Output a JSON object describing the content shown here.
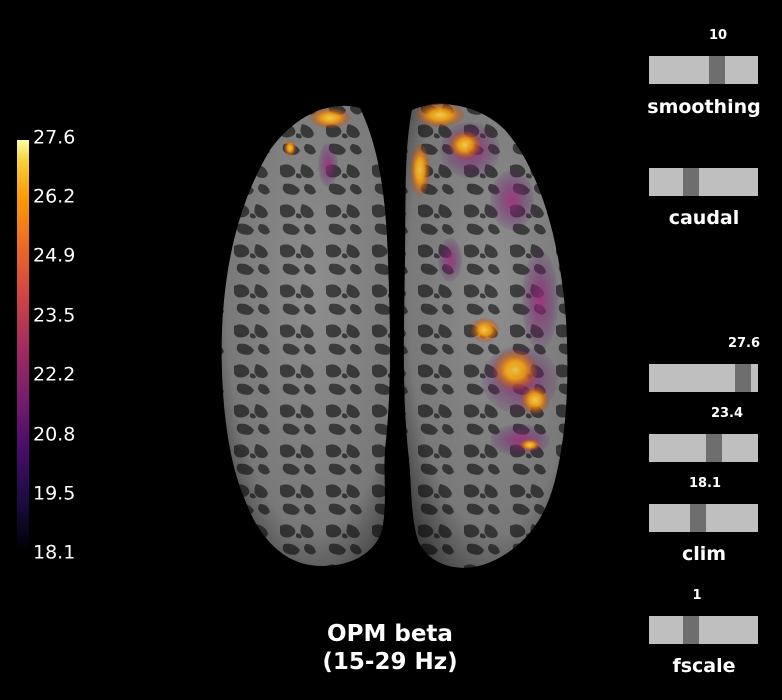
{
  "colorbar": {
    "ticks": [
      "27.6",
      "26.2",
      "24.9",
      "23.5",
      "22.2",
      "20.8",
      "19.5",
      "18.1"
    ],
    "colormap": "inferno"
  },
  "title": {
    "line1": "OPM beta",
    "line2": "(15-29 Hz)"
  },
  "sliders": {
    "smoothing": {
      "label": "smoothing",
      "value": "10",
      "fraction": 0.65
    },
    "caudal": {
      "label": "caudal",
      "value": "",
      "fraction": 0.37
    },
    "clim_max": {
      "value": "27.6",
      "fraction": 0.92
    },
    "clim_mid": {
      "value": "23.4",
      "fraction": 0.61
    },
    "clim_min": {
      "value": "18.1",
      "fraction": 0.44
    },
    "clim": {
      "label": "clim"
    },
    "fscale": {
      "label": "fscale",
      "value": "1",
      "fraction": 0.37
    }
  },
  "colors": {
    "background": "#000000",
    "slider_track": "#bfbfbf",
    "slider_handle": "#6e6e6e",
    "cortex_light": "#8c8c8c",
    "cortex_dark": "#3c3c3c"
  }
}
